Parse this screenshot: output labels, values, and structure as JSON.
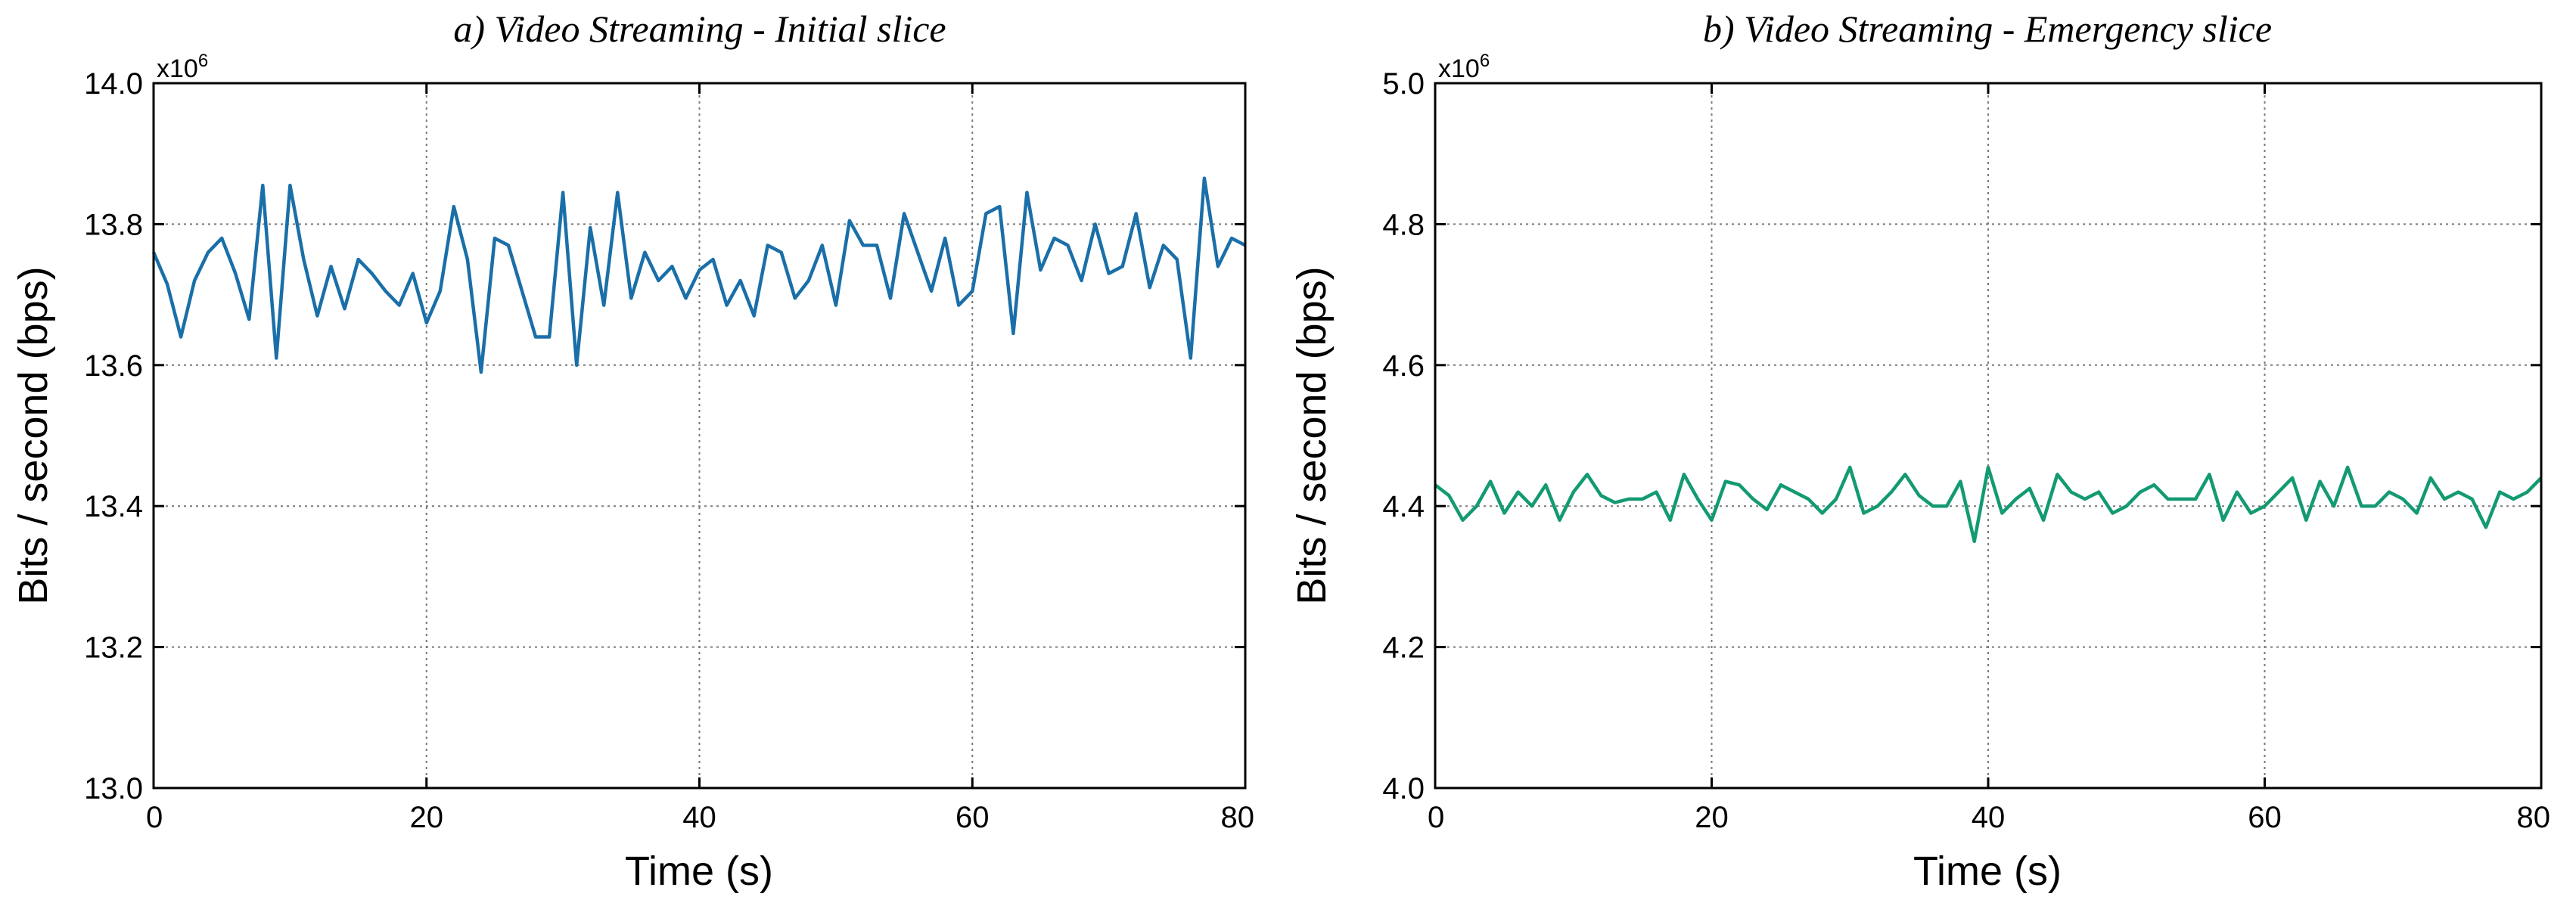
{
  "chart_data": [
    {
      "type": "line",
      "title": "a) Video Streaming - Initial slice",
      "xlabel": "Time (s)",
      "ylabel": "Bits / second (bps)",
      "multiplier": "x10",
      "multiplier_exp": "6",
      "xlim": [
        0,
        80
      ],
      "ylim": [
        13.0,
        14.0
      ],
      "xticks": [
        0,
        20,
        40,
        60,
        80
      ],
      "yticks": [
        13.0,
        13.2,
        13.4,
        13.6,
        13.8,
        14.0
      ],
      "xtick_labels": [
        "0",
        "20",
        "40",
        "60",
        "80"
      ],
      "ytick_labels": [
        "13.0",
        "13.2",
        "13.4",
        "13.6",
        "13.8",
        "14.0"
      ],
      "grid": true,
      "color": "#1a6fa8",
      "series": [
        {
          "name": "Initial slice",
          "x": [
            0,
            1,
            2,
            3,
            4,
            5,
            6,
            7,
            8,
            9,
            10,
            11,
            12,
            13,
            14,
            15,
            16,
            17,
            18,
            19,
            20,
            21,
            22,
            23,
            24,
            25,
            26,
            27,
            28,
            29,
            30,
            31,
            32,
            33,
            34,
            35,
            36,
            37,
            38,
            39,
            40,
            41,
            42,
            43,
            44,
            45,
            46,
            47,
            48,
            49,
            50,
            51,
            52,
            53,
            54,
            55,
            56,
            57,
            58,
            59,
            60,
            61,
            62,
            63,
            64,
            65,
            66,
            67,
            68,
            69,
            70,
            71,
            72,
            73,
            74,
            75,
            76,
            77,
            78,
            79,
            80
          ],
          "values": [
            13.76,
            13.715,
            13.64,
            13.72,
            13.76,
            13.78,
            13.73,
            13.665,
            13.855,
            13.61,
            13.855,
            13.75,
            13.67,
            13.74,
            13.68,
            13.75,
            13.73,
            13.705,
            13.685,
            13.73,
            13.66,
            13.705,
            13.825,
            13.75,
            13.59,
            13.78,
            13.77,
            13.705,
            13.64,
            13.64,
            13.845,
            13.6,
            13.795,
            13.685,
            13.845,
            13.695,
            13.76,
            13.72,
            13.74,
            13.695,
            13.735,
            13.75,
            13.685,
            13.72,
            13.67,
            13.77,
            13.76,
            13.695,
            13.72,
            13.77,
            13.685,
            13.805,
            13.77,
            13.77,
            13.695,
            13.815,
            13.76,
            13.705,
            13.78,
            13.685,
            13.705,
            13.815,
            13.825,
            13.645,
            13.845,
            13.735,
            13.78,
            13.77,
            13.72,
            13.8,
            13.73,
            13.74,
            13.815,
            13.71,
            13.77,
            13.75,
            13.61,
            13.865,
            13.74,
            13.78,
            13.77
          ]
        }
      ]
    },
    {
      "type": "line",
      "title": "b) Video Streaming - Emergency slice",
      "xlabel": "Time (s)",
      "ylabel": "Bits / second (bps)",
      "multiplier": "x10",
      "multiplier_exp": "6",
      "xlim": [
        0,
        80
      ],
      "ylim": [
        4.0,
        5.0
      ],
      "xticks": [
        0,
        20,
        40,
        60,
        80
      ],
      "yticks": [
        4.0,
        4.2,
        4.4,
        4.6,
        4.8,
        5.0
      ],
      "xtick_labels": [
        "0",
        "20",
        "40",
        "60",
        "80"
      ],
      "ytick_labels": [
        "4.0",
        "4.2",
        "4.4",
        "4.6",
        "4.8",
        "5.0"
      ],
      "grid": true,
      "color": "#139a72",
      "series": [
        {
          "name": "Emergency slice",
          "x": [
            0,
            1,
            2,
            3,
            4,
            5,
            6,
            7,
            8,
            9,
            10,
            11,
            12,
            13,
            14,
            15,
            16,
            17,
            18,
            19,
            20,
            21,
            22,
            23,
            24,
            25,
            26,
            27,
            28,
            29,
            30,
            31,
            32,
            33,
            34,
            35,
            36,
            37,
            38,
            39,
            40,
            41,
            42,
            43,
            44,
            45,
            46,
            47,
            48,
            49,
            50,
            51,
            52,
            53,
            54,
            55,
            56,
            57,
            58,
            59,
            60,
            61,
            62,
            63,
            64,
            65,
            66,
            67,
            68,
            69,
            70,
            71,
            72,
            73,
            74,
            75,
            76,
            77,
            78,
            79,
            80
          ],
          "values": [
            4.43,
            4.415,
            4.38,
            4.4,
            4.435,
            4.39,
            4.42,
            4.4,
            4.43,
            4.38,
            4.42,
            4.445,
            4.415,
            4.405,
            4.41,
            4.41,
            4.42,
            4.38,
            4.445,
            4.41,
            4.38,
            4.435,
            4.43,
            4.41,
            4.395,
            4.43,
            4.42,
            4.41,
            4.39,
            4.41,
            4.455,
            4.39,
            4.4,
            4.42,
            4.445,
            4.415,
            4.4,
            4.4,
            4.435,
            4.35,
            4.455,
            4.39,
            4.41,
            4.425,
            4.38,
            4.445,
            4.42,
            4.41,
            4.42,
            4.39,
            4.4,
            4.42,
            4.43,
            4.41,
            4.41,
            4.41,
            4.445,
            4.38,
            4.42,
            4.39,
            4.4,
            4.42,
            4.44,
            4.38,
            4.435,
            4.4,
            4.455,
            4.4,
            4.4,
            4.42,
            4.41,
            4.39,
            4.44,
            4.41,
            4.42,
            4.41,
            4.37,
            4.42,
            4.41,
            4.42,
            4.44
          ]
        }
      ]
    }
  ]
}
